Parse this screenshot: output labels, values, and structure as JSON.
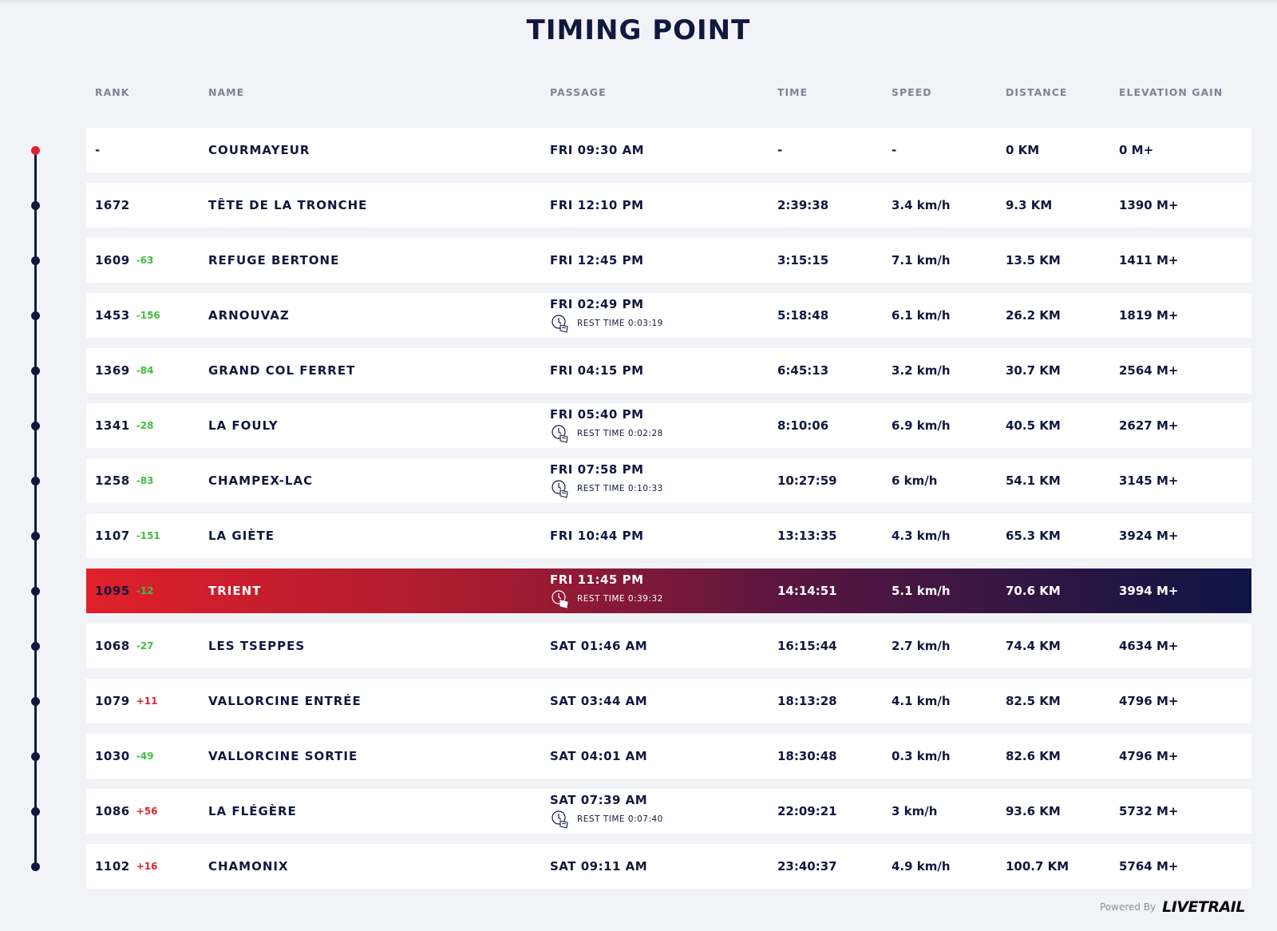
{
  "page": {
    "title": "TIMING POINT"
  },
  "columns": {
    "rank": "RANK",
    "name": "NAME",
    "passage": "PASSAGE",
    "time": "TIME",
    "speed": "SPEED",
    "distance": "DISTANCE",
    "elevation": "ELEVATION GAIN"
  },
  "rows": [
    {
      "rank": "-",
      "delta": "",
      "delta_type": "",
      "name": "COURMAYEUR",
      "passage": "FRI 09:30 AM",
      "rest": "",
      "time": "-",
      "speed": "-",
      "distance": "0 KM",
      "elevation": "0 M+"
    },
    {
      "rank": "1672",
      "delta": "",
      "delta_type": "",
      "name": "TÊTE DE LA TRONCHE",
      "passage": "FRI 12:10 PM",
      "rest": "",
      "time": "2:39:38",
      "speed": "3.4 km/h",
      "distance": "9.3 KM",
      "elevation": "1390 M+"
    },
    {
      "rank": "1609",
      "delta": "-63",
      "delta_type": "up",
      "name": "REFUGE BERTONE",
      "passage": "FRI 12:45 PM",
      "rest": "",
      "time": "3:15:15",
      "speed": "7.1 km/h",
      "distance": "13.5 KM",
      "elevation": "1411 M+"
    },
    {
      "rank": "1453",
      "delta": "-156",
      "delta_type": "up",
      "name": "ARNOUVAZ",
      "passage": "FRI 02:49 PM",
      "rest": "REST TIME 0:03:19",
      "time": "5:18:48",
      "speed": "6.1 km/h",
      "distance": "26.2 KM",
      "elevation": "1819 M+"
    },
    {
      "rank": "1369",
      "delta": "-84",
      "delta_type": "up",
      "name": "GRAND COL FERRET",
      "passage": "FRI 04:15 PM",
      "rest": "",
      "time": "6:45:13",
      "speed": "3.2 km/h",
      "distance": "30.7 KM",
      "elevation": "2564 M+"
    },
    {
      "rank": "1341",
      "delta": "-28",
      "delta_type": "up",
      "name": "LA FOULY",
      "passage": "FRI 05:40 PM",
      "rest": "REST TIME 0:02:28",
      "time": "8:10:06",
      "speed": "6.9 km/h",
      "distance": "40.5 KM",
      "elevation": "2627 M+"
    },
    {
      "rank": "1258",
      "delta": "-83",
      "delta_type": "up",
      "name": "CHAMPEX-LAC",
      "passage": "FRI 07:58 PM",
      "rest": "REST TIME 0:10:33",
      "time": "10:27:59",
      "speed": "6 km/h",
      "distance": "54.1 KM",
      "elevation": "3145 M+"
    },
    {
      "rank": "1107",
      "delta": "-151",
      "delta_type": "up",
      "name": "LA GIÈTE",
      "passage": "FRI 10:44 PM",
      "rest": "",
      "time": "13:13:35",
      "speed": "4.3 km/h",
      "distance": "65.3 KM",
      "elevation": "3924 M+"
    },
    {
      "rank": "1095",
      "delta": "-12",
      "delta_type": "up",
      "name": "TRIENT",
      "passage": "FRI 11:45 PM",
      "rest": "REST TIME 0:39:32",
      "time": "14:14:51",
      "speed": "5.1 km/h",
      "distance": "70.6 KM",
      "elevation": "3994 M+",
      "active": true
    },
    {
      "rank": "1068",
      "delta": "-27",
      "delta_type": "up",
      "name": "LES TSEPPES",
      "passage": "SAT 01:46 AM",
      "rest": "",
      "time": "16:15:44",
      "speed": "2.7 km/h",
      "distance": "74.4 KM",
      "elevation": "4634 M+"
    },
    {
      "rank": "1079",
      "delta": "+11",
      "delta_type": "down",
      "name": "VALLORCINE ENTRÉE",
      "passage": "SAT 03:44 AM",
      "rest": "",
      "time": "18:13:28",
      "speed": "4.1 km/h",
      "distance": "82.5 KM",
      "elevation": "4796 M+"
    },
    {
      "rank": "1030",
      "delta": "-49",
      "delta_type": "up",
      "name": "VALLORCINE SORTIE",
      "passage": "SAT 04:01 AM",
      "rest": "",
      "time": "18:30:48",
      "speed": "0.3 km/h",
      "distance": "82.6 KM",
      "elevation": "4796 M+"
    },
    {
      "rank": "1086",
      "delta": "+56",
      "delta_type": "down",
      "name": "LA FLÉGÈRE",
      "passage": "SAT 07:39 AM",
      "rest": "REST TIME 0:07:40",
      "time": "22:09:21",
      "speed": "3 km/h",
      "distance": "93.6 KM",
      "elevation": "5732 M+"
    },
    {
      "rank": "1102",
      "delta": "+16",
      "delta_type": "down",
      "name": "CHAMONIX",
      "passage": "SAT 09:11 AM",
      "rest": "",
      "time": "23:40:37",
      "speed": "4.9 km/h",
      "distance": "100.7 KM",
      "elevation": "5764 M+"
    }
  ],
  "footer": {
    "powered_by": "Powered By",
    "brand": "LIVETRAIL"
  },
  "colors": {
    "navy": "#11183f",
    "red": "#e0222c",
    "green": "#3fbf3f",
    "background": "#f2f3f6"
  },
  "icons": {
    "rest_time": "clock-rest-icon"
  }
}
